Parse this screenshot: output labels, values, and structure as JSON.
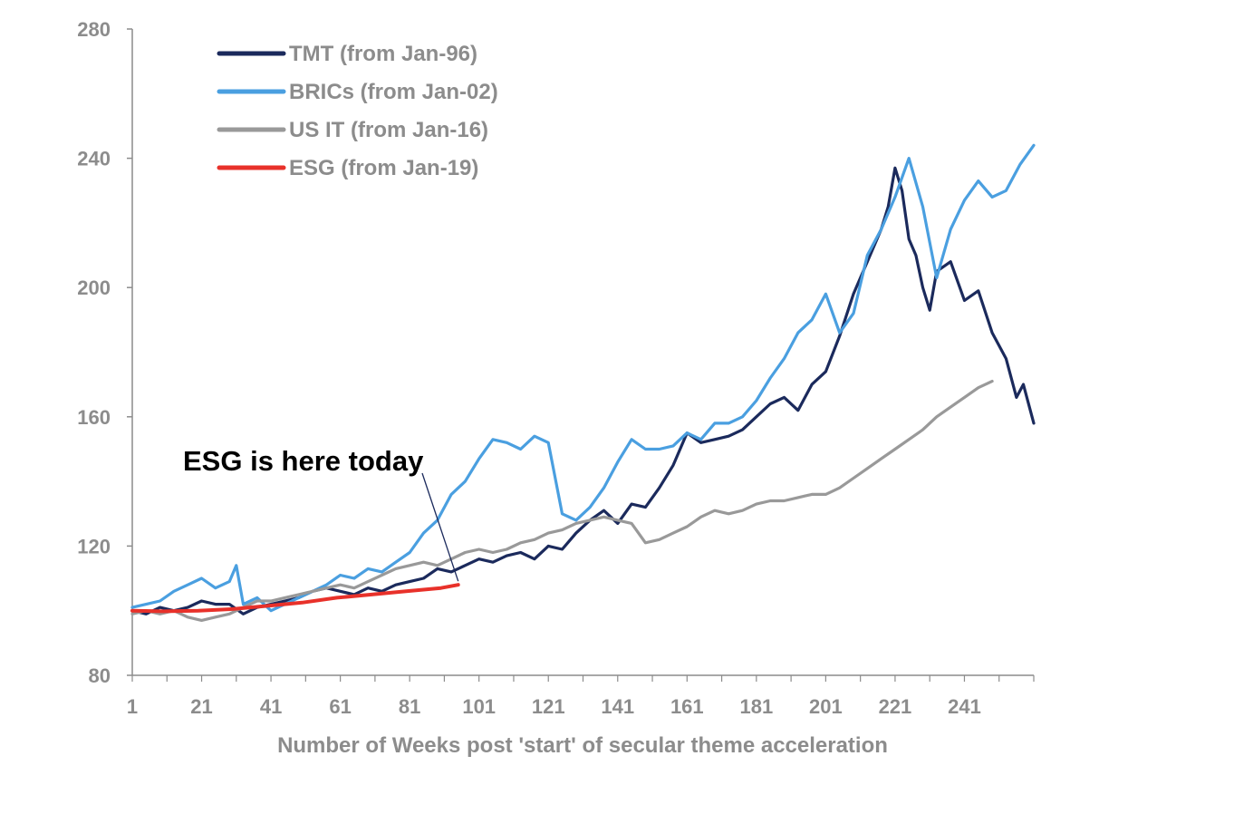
{
  "chart_data": {
    "type": "line",
    "title": "",
    "xlabel": "Number of Weeks post 'start' of secular theme acceleration",
    "ylabel": "",
    "xlim": [
      1,
      261
    ],
    "ylim": [
      80,
      280
    ],
    "xticks": [
      1,
      21,
      41,
      61,
      81,
      101,
      121,
      141,
      161,
      181,
      201,
      221,
      241
    ],
    "yticks": [
      80,
      120,
      160,
      200,
      240,
      280
    ],
    "grid": false,
    "legend_position": "top-left",
    "annotation": {
      "text": "ESG is here today",
      "points_to": {
        "x": 95,
        "y": 108
      }
    },
    "series": [
      {
        "name": "TMT (from Jan-96)",
        "color": "#1b2a5c",
        "x": [
          1,
          5,
          9,
          13,
          17,
          21,
          25,
          29,
          33,
          37,
          41,
          45,
          49,
          53,
          57,
          61,
          65,
          69,
          73,
          77,
          81,
          85,
          89,
          93,
          97,
          101,
          105,
          109,
          113,
          117,
          121,
          125,
          129,
          133,
          137,
          141,
          145,
          149,
          153,
          157,
          161,
          165,
          169,
          173,
          177,
          181,
          185,
          189,
          193,
          197,
          201,
          205,
          209,
          213,
          217,
          219,
          221,
          223,
          225,
          227,
          229,
          231,
          233,
          237,
          241,
          245,
          249,
          253,
          256,
          258,
          261
        ],
        "values": [
          100,
          99,
          101,
          100,
          101,
          103,
          102,
          102,
          99,
          101,
          102,
          103,
          104,
          106,
          107,
          106,
          105,
          107,
          106,
          108,
          109,
          110,
          113,
          112,
          114,
          116,
          115,
          117,
          118,
          116,
          120,
          119,
          124,
          128,
          131,
          127,
          133,
          132,
          138,
          145,
          155,
          152,
          153,
          154,
          156,
          160,
          164,
          166,
          162,
          170,
          174,
          185,
          198,
          208,
          218,
          225,
          237,
          230,
          215,
          210,
          200,
          193,
          205,
          208,
          196,
          199,
          186,
          178,
          166,
          170,
          158
        ]
      },
      {
        "name": "BRICs (from Jan-02)",
        "color": "#4a9fe0",
        "x": [
          1,
          5,
          9,
          13,
          17,
          21,
          25,
          29,
          31,
          33,
          37,
          41,
          45,
          49,
          53,
          57,
          61,
          65,
          69,
          73,
          77,
          81,
          85,
          89,
          93,
          97,
          101,
          105,
          109,
          113,
          117,
          121,
          125,
          129,
          133,
          137,
          141,
          145,
          149,
          153,
          157,
          161,
          165,
          169,
          173,
          177,
          181,
          185,
          189,
          193,
          197,
          201,
          205,
          209,
          213,
          217,
          221,
          225,
          229,
          233,
          237,
          241,
          245,
          249,
          253,
          257,
          261
        ],
        "values": [
          101,
          102,
          103,
          106,
          108,
          110,
          107,
          109,
          114,
          102,
          104,
          100,
          102,
          104,
          106,
          108,
          111,
          110,
          113,
          112,
          115,
          118,
          124,
          128,
          136,
          140,
          147,
          153,
          152,
          150,
          154,
          152,
          130,
          128,
          132,
          138,
          146,
          153,
          150,
          150,
          151,
          155,
          153,
          158,
          158,
          160,
          165,
          172,
          178,
          186,
          190,
          198,
          186,
          192,
          210,
          218,
          228,
          240,
          225,
          203,
          218,
          227,
          233,
          228,
          230,
          238,
          244
        ]
      },
      {
        "name": "US IT (from Jan-16)",
        "color": "#999999",
        "x": [
          1,
          5,
          9,
          13,
          17,
          21,
          25,
          29,
          33,
          37,
          41,
          45,
          49,
          53,
          57,
          61,
          65,
          69,
          73,
          77,
          81,
          85,
          89,
          93,
          97,
          101,
          105,
          109,
          113,
          117,
          121,
          125,
          129,
          133,
          137,
          141,
          145,
          149,
          153,
          157,
          161,
          165,
          169,
          173,
          177,
          181,
          185,
          189,
          193,
          197,
          201,
          205,
          209,
          213,
          217,
          221,
          225,
          229,
          233,
          237,
          241,
          245,
          249
        ],
        "values": [
          99,
          100,
          99,
          100,
          98,
          97,
          98,
          99,
          101,
          103,
          103,
          104,
          105,
          106,
          107,
          108,
          107,
          109,
          111,
          113,
          114,
          115,
          114,
          116,
          118,
          119,
          118,
          119,
          121,
          122,
          124,
          125,
          127,
          128,
          129,
          128,
          127,
          121,
          122,
          124,
          126,
          129,
          131,
          130,
          131,
          133,
          134,
          134,
          135,
          136,
          136,
          138,
          141,
          144,
          147,
          150,
          153,
          156,
          160,
          163,
          166,
          169,
          171
        ]
      },
      {
        "name": "ESG (from Jan-19)",
        "color": "#e8312a",
        "x": [
          1,
          10,
          20,
          30,
          40,
          50,
          60,
          70,
          80,
          90,
          95
        ],
        "values": [
          100,
          99.8,
          100,
          100.5,
          101.5,
          102.5,
          104,
          105,
          106,
          107,
          108
        ]
      }
    ]
  }
}
